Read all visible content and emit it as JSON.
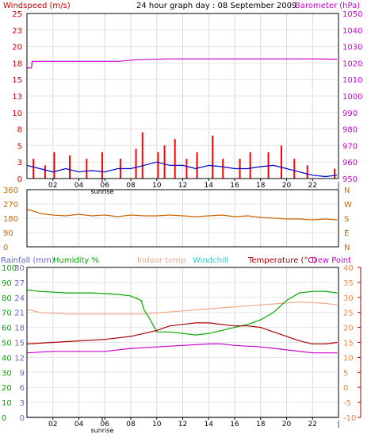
{
  "header": {
    "wind_label": "Windspeed (m/s)",
    "title": "24 hour graph day : 08 September 2009",
    "baro_label": "Barometer (hPa)"
  },
  "bottom_header": {
    "rain_label": "Rainfall (mm)",
    "humidity_label": "Humidity %",
    "indoor_label": "Indoor temp",
    "windchill_label": "Windchill",
    "temp_label": "Temperature (°C)",
    "dew_label": "Dew Point"
  },
  "hour_ticks": [
    "02",
    "04",
    "06",
    "08",
    "10",
    "12",
    "14",
    "16",
    "18",
    "20",
    "22"
  ],
  "sunrise_label": "sunrise",
  "colors": {
    "wind_label": "#cc0000",
    "baro": "#cc00cc",
    "gust": "#ff0000",
    "wind_avg": "#0000cc",
    "direction": "#cc6600",
    "rain": "#6666cc",
    "humidity": "#00aa00",
    "indoor": "#eeaa88",
    "windchill": "#33cccc",
    "temperature": "#aa0000",
    "dewpoint": "#cc00cc"
  },
  "chart_data": [
    {
      "type": "line",
      "name": "wind-barometer",
      "x_range": [
        0,
        24
      ],
      "y_left": {
        "ticks": [
          "0",
          "3",
          "5",
          "8",
          "10",
          "13",
          "15",
          "18",
          "20",
          "23",
          "25"
        ],
        "range": [
          0,
          25
        ]
      },
      "y_right": {
        "ticks": [
          "950",
          "960",
          "970",
          "980",
          "990",
          "1000",
          "1010",
          "1020",
          "1030",
          "1040",
          "1050"
        ],
        "range": [
          950,
          1050
        ]
      },
      "barometer": {
        "x": [
          0,
          0.35,
          0.4,
          7,
          8.5,
          11,
          14,
          16,
          18,
          20,
          22,
          23.9
        ],
        "y": [
          1017,
          1017,
          1021,
          1021,
          1022,
          1022.5,
          1022.5,
          1022.5,
          1022.5,
          1022.5,
          1022.5,
          1022.3
        ]
      },
      "wind_avg": {
        "x": [
          0,
          1,
          2,
          3,
          4,
          5,
          6,
          7,
          8,
          9,
          10,
          11,
          12,
          13,
          14,
          15,
          16,
          17,
          18,
          19,
          20,
          21,
          22,
          23,
          23.9
        ],
        "y": [
          2,
          1.5,
          1,
          1.5,
          1,
          1.2,
          1,
          1.5,
          1.5,
          2,
          2.5,
          2,
          2,
          1.5,
          2,
          1.8,
          1.5,
          1.5,
          1.8,
          2,
          1.5,
          1,
          0.5,
          0.3,
          0.5
        ]
      },
      "gusts": {
        "x": [
          0.5,
          1.4,
          2.1,
          3.3,
          4.6,
          5.8,
          7.2,
          8.4,
          8.9,
          10.1,
          10.6,
          11.4,
          12.3,
          13.1,
          14.3,
          15.1,
          16.4,
          17.2,
          18.6,
          19.6,
          20.6,
          21.6,
          23.7
        ],
        "y": [
          3,
          2,
          4,
          3.5,
          3,
          4,
          3,
          4.5,
          7,
          4,
          5,
          6,
          3,
          4,
          6.5,
          3,
          3,
          4,
          4,
          5,
          3,
          2,
          1.5
        ]
      }
    },
    {
      "type": "line",
      "name": "wind-direction",
      "x_range": [
        0,
        24
      ],
      "y_left": {
        "ticks": [
          "360",
          "270",
          "180",
          "90",
          "0"
        ],
        "range": [
          0,
          360
        ]
      },
      "y_right_labels": [
        "N",
        "W",
        "S",
        "E",
        "N"
      ],
      "direction": {
        "x": [
          0,
          0.5,
          1,
          2,
          3,
          4,
          5,
          6,
          7,
          8,
          9,
          10,
          11,
          12,
          13,
          14,
          15,
          16,
          17,
          18,
          19,
          20,
          21,
          22,
          23,
          23.9
        ],
        "y": [
          235,
          225,
          210,
          200,
          195,
          205,
          195,
          200,
          190,
          200,
          195,
          195,
          200,
          195,
          190,
          195,
          200,
          190,
          195,
          185,
          180,
          175,
          175,
          170,
          175,
          170
        ]
      }
    },
    {
      "type": "line",
      "name": "temperature-humidity",
      "x_range": [
        0,
        24
      ],
      "y_rain": {
        "ticks": [
          "30",
          "27",
          "24",
          "21",
          "18",
          "15",
          "12",
          "9",
          "6",
          "3",
          "0"
        ],
        "range": [
          0,
          30
        ]
      },
      "y_humidity": {
        "ticks": [
          "100",
          "90",
          "80",
          "70",
          "60",
          "50",
          "40",
          "30",
          "20",
          "10",
          "0"
        ],
        "range": [
          0,
          100
        ]
      },
      "y_temp": {
        "ticks": [
          "40",
          "35",
          "30",
          "25",
          "20",
          "15",
          "10",
          "5",
          "0",
          "-5",
          "-10"
        ],
        "range": [
          -10,
          40
        ]
      },
      "rainfall": {
        "x": [
          0,
          23.9
        ],
        "y": [
          0,
          0
        ]
      },
      "humidity": {
        "x": [
          0,
          1,
          3,
          5,
          7,
          8,
          8.8,
          9,
          9.5,
          10,
          11,
          12,
          13,
          14,
          15,
          16,
          17,
          18,
          19,
          20,
          21,
          22,
          23,
          23.9
        ],
        "y": [
          85,
          84,
          83,
          83,
          82,
          81,
          78,
          72,
          65,
          57,
          57,
          56,
          55,
          56,
          58,
          60,
          62,
          65,
          70,
          78,
          83,
          84,
          84,
          83
        ]
      },
      "indoor": {
        "x": [
          0,
          1,
          3,
          6,
          9,
          12,
          15,
          18,
          21,
          23,
          23.9
        ],
        "y": [
          26,
          25,
          24.5,
          24.5,
          24.5,
          25.5,
          26.5,
          27.5,
          28.5,
          28,
          27.5
        ]
      },
      "temperature": {
        "x": [
          0,
          2,
          4,
          6,
          8,
          9,
          10,
          11,
          12,
          13,
          14,
          15,
          16,
          17,
          18,
          19,
          20,
          21,
          22,
          23,
          23.9
        ],
        "y": [
          14.5,
          15,
          15.5,
          16,
          17,
          18,
          19,
          20.5,
          21,
          21.5,
          21.5,
          21,
          20.5,
          20.5,
          20,
          18.5,
          17,
          15.5,
          14.5,
          14.5,
          15
        ]
      },
      "dewpoint": {
        "x": [
          0,
          2,
          4,
          6,
          8,
          10,
          12,
          14,
          15,
          16,
          18,
          20,
          21,
          22,
          23,
          23.9
        ],
        "y": [
          11.5,
          12,
          12,
          12,
          13,
          13.5,
          14,
          14.5,
          14.5,
          14,
          13.5,
          12.5,
          12,
          11.5,
          11.5,
          11.5
        ]
      }
    }
  ]
}
